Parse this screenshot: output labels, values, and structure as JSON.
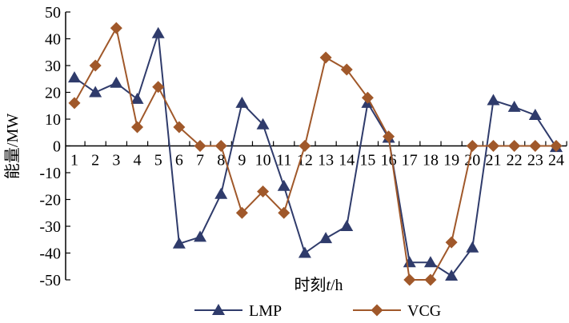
{
  "chart_data": {
    "type": "line",
    "xlabel_prefix": "时刻",
    "xlabel_var": "t",
    "xlabel_suffix": "/h",
    "ylabel": "能量/MW",
    "ylim": [
      -50,
      50
    ],
    "yticks": [
      -50,
      -40,
      -30,
      -20,
      -10,
      0,
      10,
      20,
      30,
      40,
      50
    ],
    "categories": [
      "1",
      "2",
      "3",
      "4",
      "5",
      "6",
      "7",
      "8",
      "9",
      "10",
      "11",
      "12",
      "13",
      "14",
      "15",
      "16",
      "17",
      "18",
      "19",
      "20",
      "21",
      "22",
      "23",
      "24"
    ],
    "grid": false,
    "legend_position": "bottom",
    "series": [
      {
        "name": "LMP",
        "color": "#2f3b6b",
        "marker": "triangle",
        "values": [
          25.5,
          20,
          23.5,
          17.5,
          42,
          -36.5,
          -34,
          -18,
          16,
          8,
          -15,
          -40,
          -34.5,
          -30,
          16,
          3,
          -43.5,
          -43.5,
          -48.5,
          -38,
          17,
          14.5,
          11.5,
          -0.5
        ]
      },
      {
        "name": "VCG",
        "color": "#a0582a",
        "marker": "diamond",
        "values": [
          16,
          30,
          44,
          7,
          22,
          7,
          0,
          0,
          -25,
          -17,
          -25,
          0,
          33,
          28.5,
          18,
          3.5,
          -50,
          -50,
          -36,
          0,
          0,
          0,
          0,
          0
        ]
      }
    ]
  }
}
